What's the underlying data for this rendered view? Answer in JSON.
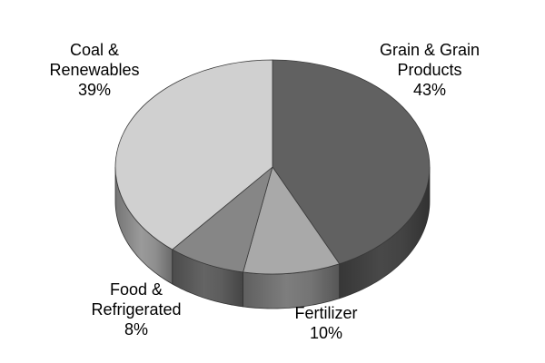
{
  "chart_data": {
    "type": "pie",
    "style": "3d",
    "slices": [
      {
        "label_lines": [
          "Grain & Grain",
          "Products"
        ],
        "value": 43,
        "value_label": "43%",
        "color": "#616161"
      },
      {
        "label_lines": [
          "Fertilizer"
        ],
        "value": 10,
        "value_label": "10%",
        "color": "#a9a9a9"
      },
      {
        "label_lines": [
          "Food &",
          "Refrigerated"
        ],
        "value": 8,
        "value_label": "8%",
        "color": "#868686"
      },
      {
        "label_lines": [
          "Coal &",
          "Renewables"
        ],
        "value": 39,
        "value_label": "39%",
        "color": "#d0d0d0"
      }
    ],
    "edge_color": "#3a3a3a"
  }
}
